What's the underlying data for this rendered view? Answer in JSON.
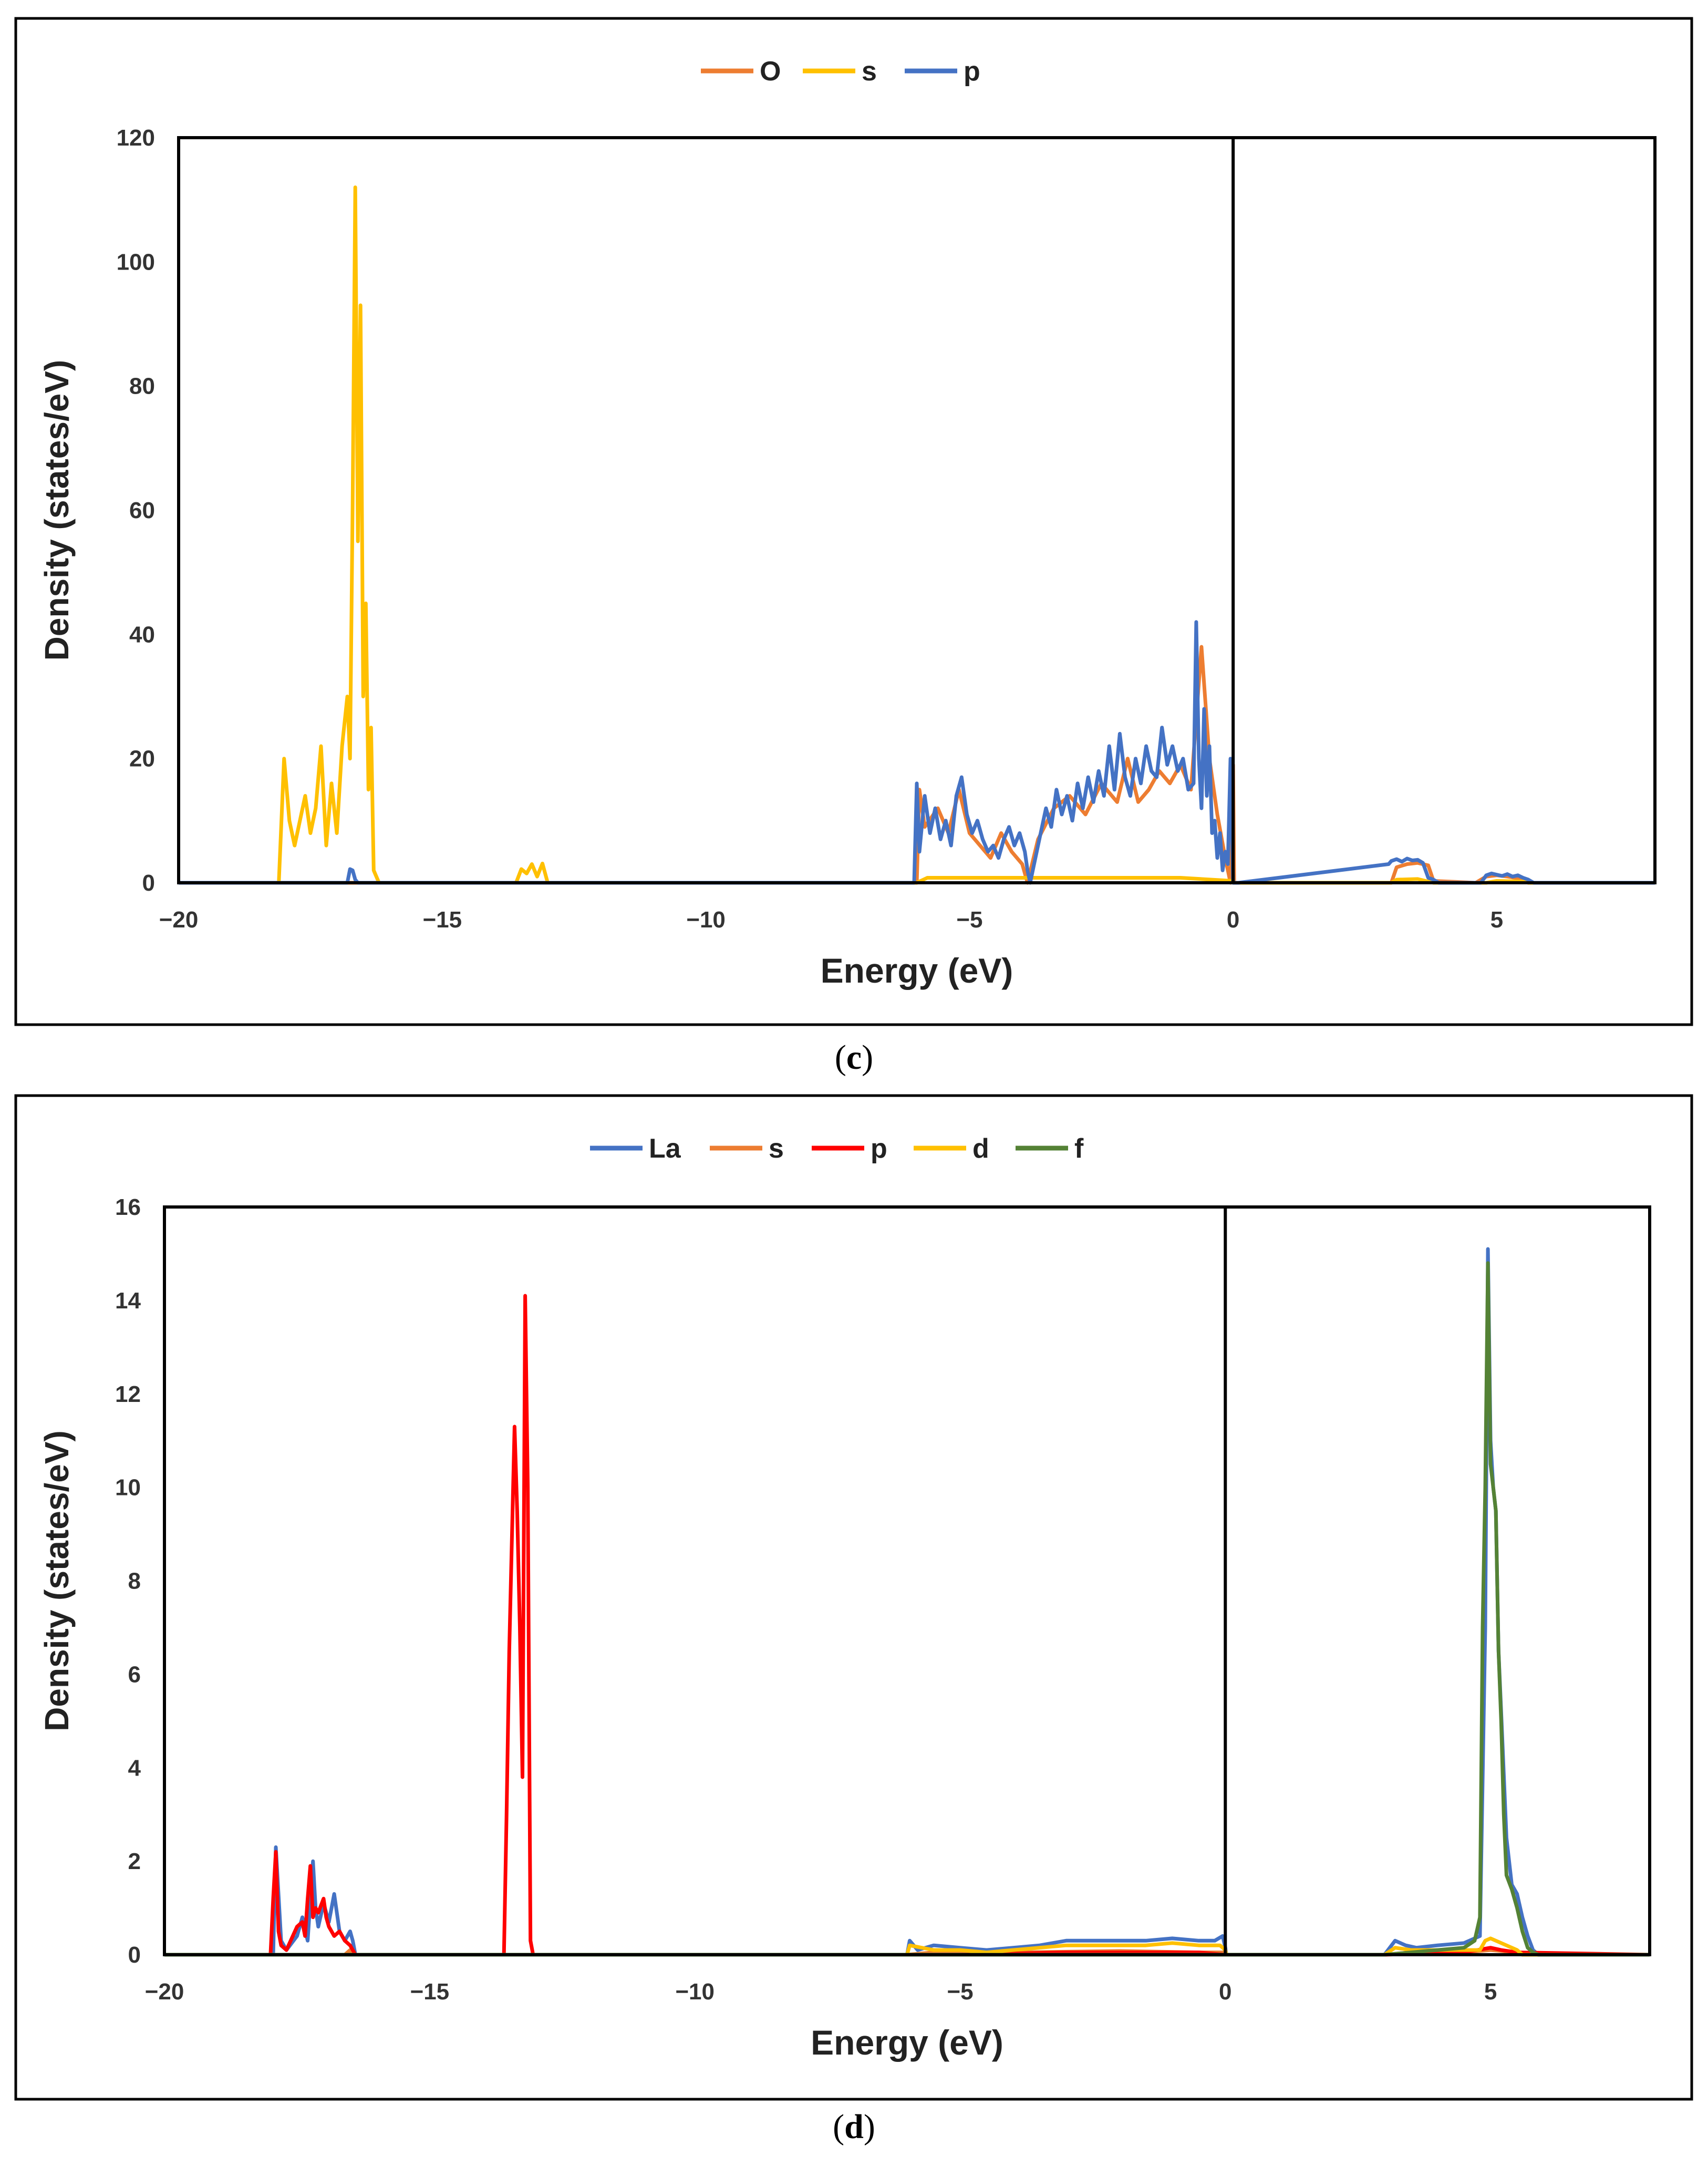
{
  "chart_data": [
    {
      "type": "line",
      "panel_label": "c",
      "caption_open": "(",
      "caption_close": ")",
      "xlabel": "Energy (eV)",
      "ylabel": "Density (states/eV)",
      "xlim": [
        -20,
        8
      ],
      "ylim": [
        0,
        120
      ],
      "xticks": [
        -20,
        -15,
        -10,
        -5,
        0,
        5
      ],
      "xtick_labels": [
        "−20",
        "−15",
        "−10",
        "−5",
        "0",
        "5"
      ],
      "yticks": [
        0,
        20,
        40,
        60,
        80,
        100,
        120
      ],
      "ytick_labels": [
        "0",
        "20",
        "40",
        "60",
        "80",
        "100",
        "120"
      ],
      "fermi_line_x": 0,
      "legend_position": "top-center",
      "series": [
        {
          "name": "O",
          "color": "#ED7D31",
          "x": [
            -20,
            -6.0,
            -5.95,
            -5.85,
            -5.6,
            -5.4,
            -5.2,
            -5.0,
            -4.8,
            -4.6,
            -4.4,
            -4.2,
            -4.0,
            -3.9,
            -3.7,
            -3.4,
            -3.1,
            -2.8,
            -2.5,
            -2.2,
            -2.0,
            -1.8,
            -1.6,
            -1.4,
            -1.2,
            -1.0,
            -0.8,
            -0.6,
            -0.45,
            -0.3,
            -0.15,
            -0.05,
            0.0,
            0.02,
            0.1,
            3.0,
            3.1,
            3.3,
            3.5,
            3.7,
            3.8,
            4.6,
            4.8,
            5.0,
            5.2,
            5.5,
            5.6,
            8
          ],
          "y": [
            0,
            0,
            15,
            9,
            12,
            8,
            15,
            8,
            6,
            4,
            8,
            5,
            3,
            0,
            7,
            12,
            14,
            11,
            16,
            13,
            20,
            13,
            15,
            18,
            16,
            19,
            15,
            38,
            20,
            11,
            4,
            0,
            19,
            0,
            0,
            0,
            2.5,
            3.0,
            3.2,
            2.8,
            0.3,
            0,
            1.0,
            1.2,
            1.0,
            0.6,
            0,
            0
          ]
        },
        {
          "name": "s",
          "color": "#FFC000",
          "x": [
            -20,
            -18.1,
            -18.0,
            -17.9,
            -17.8,
            -17.6,
            -17.5,
            -17.4,
            -17.3,
            -17.2,
            -17.1,
            -17.0,
            -16.9,
            -16.8,
            -16.75,
            -16.7,
            -16.65,
            -16.6,
            -16.55,
            -16.5,
            -16.45,
            -16.4,
            -16.35,
            -16.3,
            -16.2,
            -13.6,
            -13.5,
            -13.4,
            -13.3,
            -13.2,
            -13.1,
            -13.0,
            -6.0,
            -5.8,
            -5.0,
            -3.0,
            -1.0,
            0.0,
            0.02,
            3.0,
            3.1,
            3.5,
            3.8,
            4.8,
            5.0,
            5.5,
            5.6,
            8
          ],
          "y": [
            0,
            0,
            20,
            10,
            6,
            14,
            8,
            12,
            22,
            6,
            16,
            8,
            22,
            30,
            20,
            61,
            112,
            55,
            93,
            30,
            45,
            15,
            25,
            2,
            0,
            0,
            2.2,
            1.5,
            3.0,
            1.0,
            3.1,
            0,
            0,
            0.8,
            0.8,
            0.8,
            0.8,
            0.3,
            0,
            0,
            0.5,
            0.6,
            0,
            0,
            0.3,
            0.2,
            0,
            0
          ]
        },
        {
          "name": "p",
          "color": "#4472C4",
          "x": [
            -20,
            -16.8,
            -16.75,
            -16.7,
            -16.65,
            -16.6,
            -6.05,
            -6.0,
            -5.95,
            -5.85,
            -5.75,
            -5.65,
            -5.55,
            -5.45,
            -5.35,
            -5.25,
            -5.15,
            -5.05,
            -4.95,
            -4.85,
            -4.75,
            -4.65,
            -4.55,
            -4.45,
            -4.35,
            -4.25,
            -4.15,
            -4.05,
            -3.95,
            -3.9,
            -3.85,
            -3.75,
            -3.65,
            -3.55,
            -3.45,
            -3.35,
            -3.25,
            -3.15,
            -3.05,
            -2.95,
            -2.85,
            -2.75,
            -2.65,
            -2.55,
            -2.45,
            -2.35,
            -2.25,
            -2.15,
            -2.05,
            -1.95,
            -1.85,
            -1.75,
            -1.65,
            -1.55,
            -1.45,
            -1.35,
            -1.25,
            -1.15,
            -1.05,
            -0.95,
            -0.85,
            -0.75,
            -0.7,
            -0.65,
            -0.6,
            -0.55,
            -0.5,
            -0.45,
            -0.4,
            -0.35,
            -0.3,
            -0.25,
            -0.2,
            -0.15,
            -0.1,
            -0.05,
            0.0,
            0.02,
            0.1,
            2.95,
            3.0,
            3.1,
            3.2,
            3.3,
            3.4,
            3.5,
            3.6,
            3.7,
            3.8,
            3.9,
            4.7,
            4.8,
            4.9,
            5.0,
            5.1,
            5.2,
            5.3,
            5.4,
            5.5,
            5.6,
            5.7,
            8
          ],
          "y": [
            0,
            0,
            2.2,
            2.0,
            0.5,
            0,
            0,
            16,
            5,
            14,
            8,
            12,
            7,
            10,
            6,
            14,
            17,
            11,
            8,
            10,
            7,
            5,
            6,
            4,
            7,
            9,
            6,
            8,
            5,
            2,
            0,
            4,
            8,
            12,
            9,
            15,
            11,
            14,
            10,
            16,
            12,
            17,
            13,
            18,
            14,
            22,
            15,
            24,
            17,
            14,
            20,
            16,
            22,
            18,
            17,
            25,
            19,
            22,
            18,
            20,
            15,
            16,
            42,
            20,
            12,
            28,
            14,
            22,
            8,
            10,
            4,
            8,
            2,
            5,
            3,
            20,
            0,
            0,
            0,
            3.0,
            3.5,
            3.8,
            3.4,
            3.9,
            3.6,
            3.7,
            3.2,
            0.8,
            0.5,
            0,
            0,
            1.2,
            1.5,
            1.3,
            1.1,
            1.4,
            1.0,
            1.2,
            0.8,
            0.5,
            0,
            0
          ]
        }
      ]
    },
    {
      "type": "line",
      "panel_label": "d",
      "caption_open": "(",
      "caption_close": ")",
      "xlabel": "Energy (eV)",
      "ylabel": "Density (states/eV)",
      "xlim": [
        -20,
        8
      ],
      "ylim": [
        0,
        16
      ],
      "xticks": [
        -20,
        -15,
        -10,
        -5,
        0,
        5
      ],
      "xtick_labels": [
        "−20",
        "−15",
        "−10",
        "−5",
        "0",
        "5"
      ],
      "yticks": [
        0,
        2,
        4,
        6,
        8,
        10,
        12,
        14,
        16
      ],
      "ytick_labels": [
        "0",
        "2",
        "4",
        "6",
        "8",
        "10",
        "12",
        "14",
        "16"
      ],
      "fermi_line_x": 0,
      "legend_position": "top-center",
      "series": [
        {
          "name": "La",
          "color": "#4472C4",
          "x": [
            -20,
            -18.05,
            -17.95,
            -17.9,
            -17.8,
            -17.7,
            -17.5,
            -17.4,
            -17.3,
            -17.2,
            -17.15,
            -17.1,
            -17.0,
            -16.9,
            -16.8,
            -16.7,
            -16.6,
            -16.5,
            -16.45,
            -16.4,
            -6.0,
            -5.95,
            -5.8,
            -5.5,
            -5.0,
            -4.5,
            -4.0,
            -3.5,
            -3.0,
            -2.5,
            -2.0,
            -1.5,
            -1.0,
            -0.5,
            -0.2,
            -0.05,
            0.0,
            0.02,
            0.1,
            3.0,
            3.2,
            3.4,
            3.6,
            4.0,
            4.5,
            4.8,
            4.9,
            4.95,
            5.0,
            5.05,
            5.1,
            5.15,
            5.2,
            5.3,
            5.4,
            5.5,
            5.6,
            5.7,
            5.8,
            5.9,
            8
          ],
          "y": [
            0,
            0,
            0,
            2.3,
            0.3,
            0.1,
            0.4,
            0.8,
            0.3,
            2.0,
            1.0,
            0.6,
            1.1,
            0.7,
            1.3,
            0.5,
            0.3,
            0.5,
            0.3,
            0,
            0,
            0.3,
            0.1,
            0.2,
            0.15,
            0.1,
            0.15,
            0.2,
            0.3,
            0.3,
            0.3,
            0.3,
            0.35,
            0.3,
            0.3,
            0.4,
            0.15,
            0,
            0,
            0,
            0.3,
            0.2,
            0.15,
            0.2,
            0.25,
            0.4,
            7,
            15.1,
            11,
            10,
            9.5,
            6.5,
            5.2,
            2.5,
            1.5,
            1.3,
            0.8,
            0.4,
            0.1,
            0,
            0
          ]
        },
        {
          "name": "s",
          "color": "#ED7D31",
          "x": [
            -20,
            -16.6,
            -16.5,
            -16.45,
            -6.0,
            -5.5,
            -4.0,
            -2.0,
            -0.5,
            0.0,
            0.02,
            3.0,
            3.5,
            4.5,
            5.0,
            5.5,
            5.6,
            8
          ],
          "y": [
            0,
            0,
            0.1,
            0,
            0,
            0.05,
            0.05,
            0.08,
            0.05,
            0.05,
            0,
            0,
            0.05,
            0.05,
            0.1,
            0.05,
            0,
            0
          ]
        },
        {
          "name": "p",
          "color": "#FF0000",
          "x": [
            -20,
            -18.0,
            -17.95,
            -17.9,
            -17.85,
            -17.8,
            -17.7,
            -17.5,
            -17.4,
            -17.35,
            -17.3,
            -17.25,
            -17.2,
            -17.15,
            -17.1,
            -17.0,
            -16.95,
            -16.9,
            -16.8,
            -16.7,
            -16.6,
            -16.5,
            -16.45,
            -16.4,
            -13.6,
            -13.55,
            -13.5,
            -13.4,
            -13.35,
            -13.3,
            -13.25,
            -13.2,
            -13.15,
            -13.1,
            -13.05,
            -13.0,
            -5.0,
            -3.0,
            -0.5,
            0.0,
            3.0,
            4.5,
            5.0,
            5.2,
            5.5,
            8
          ],
          "y": [
            0,
            0,
            1.2,
            2.2,
            0.5,
            0.2,
            0.1,
            0.6,
            0.7,
            0.4,
            1.2,
            1.9,
            0.8,
            1.0,
            0.9,
            1.2,
            0.8,
            0.6,
            0.4,
            0.5,
            0.3,
            0.2,
            0.1,
            0,
            0,
            3,
            6.5,
            11.3,
            9.5,
            7,
            3.8,
            14.1,
            10,
            0.3,
            0,
            0,
            0,
            0.05,
            0.05,
            0,
            0,
            0.05,
            0.15,
            0.1,
            0.05,
            0
          ]
        },
        {
          "name": "d",
          "color": "#FFC000",
          "x": [
            -20,
            -16.5,
            -6.0,
            -5.95,
            -5.5,
            -5.0,
            -4.5,
            -4.0,
            -3.5,
            -3.0,
            -2.5,
            -2.0,
            -1.5,
            -1.0,
            -0.5,
            -0.1,
            0.0,
            0.02,
            3.0,
            3.2,
            3.5,
            4.0,
            4.5,
            4.8,
            4.9,
            5.0,
            5.1,
            5.3,
            5.5,
            5.6,
            8
          ],
          "y": [
            0,
            0,
            0,
            0.2,
            0.1,
            0.1,
            0.05,
            0.1,
            0.15,
            0.2,
            0.2,
            0.2,
            0.2,
            0.25,
            0.2,
            0.2,
            0.1,
            0,
            0,
            0.15,
            0.1,
            0.1,
            0.1,
            0.1,
            0.3,
            0.35,
            0.3,
            0.2,
            0.1,
            0,
            0
          ]
        },
        {
          "name": "f",
          "color": "#548235",
          "x": [
            -20,
            3.0,
            3.5,
            4.0,
            4.5,
            4.7,
            4.8,
            4.85,
            4.9,
            4.95,
            5.0,
            5.05,
            5.1,
            5.15,
            5.2,
            5.25,
            5.3,
            5.4,
            5.5,
            5.6,
            5.7,
            5.8,
            5.9,
            8
          ],
          "y": [
            0,
            0,
            0.05,
            0.1,
            0.15,
            0.3,
            0.8,
            7,
            10,
            14.8,
            10.5,
            10,
            9.5,
            6.5,
            5.0,
            3.0,
            1.7,
            1.4,
            1.0,
            0.5,
            0.15,
            0.05,
            0,
            0
          ]
        }
      ]
    }
  ]
}
